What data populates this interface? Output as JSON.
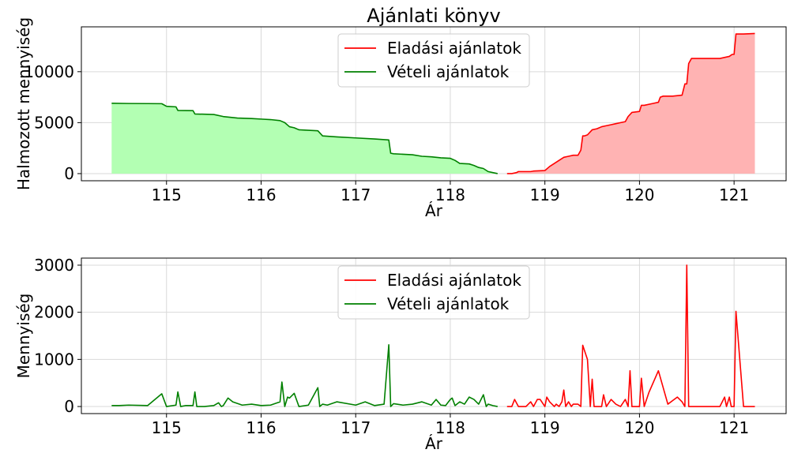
{
  "chart_data": [
    {
      "type": "area",
      "title": "Ajánlati könyv",
      "xlabel": "Ár",
      "ylabel": "Halmozott mennyiség",
      "xlim": [
        114.1,
        121.55
      ],
      "ylim": [
        -700,
        14400
      ],
      "xticks": [
        "115",
        "116",
        "117",
        "118",
        "119",
        "120",
        "121"
      ],
      "yticks": [
        "0",
        "5000",
        "10000"
      ],
      "grid": true,
      "legend": {
        "position": "top-center",
        "entries": [
          {
            "label": "Eladási ajánlatok",
            "color": "#ff0000"
          },
          {
            "label": "Vételi ajánlatok",
            "color": "#008000"
          }
        ]
      },
      "series": [
        {
          "name": "Eladási ajánlatok",
          "color": "#ff0000",
          "fill": "#ffb3b3",
          "x": [
            118.6,
            118.65,
            118.7,
            118.72,
            118.85,
            118.88,
            119.0,
            119.05,
            119.1,
            119.15,
            119.2,
            119.25,
            119.3,
            119.35,
            119.38,
            119.4,
            119.42,
            119.45,
            119.5,
            119.55,
            119.6,
            119.65,
            119.7,
            119.75,
            119.8,
            119.85,
            119.88,
            119.92,
            120.0,
            120.02,
            120.05,
            120.15,
            120.2,
            120.22,
            120.25,
            120.35,
            120.45,
            120.48,
            120.5,
            120.52,
            120.55,
            120.65,
            120.8,
            120.85,
            120.95,
            120.98,
            121.0,
            121.02,
            121.1,
            121.22
          ],
          "y": [
            0,
            0,
            100,
            200,
            200,
            250,
            300,
            700,
            1000,
            1300,
            1600,
            1700,
            1800,
            1800,
            2300,
            3700,
            3700,
            3800,
            4300,
            4400,
            4600,
            4700,
            4800,
            4900,
            5000,
            5100,
            5600,
            6000,
            6100,
            6700,
            6700,
            6900,
            7000,
            7500,
            7600,
            7600,
            7700,
            8800,
            8800,
            10800,
            11300,
            11300,
            11300,
            11300,
            11500,
            11700,
            11700,
            13700,
            13700,
            13750
          ]
        },
        {
          "name": "Vételi ajánlatok",
          "color": "#008000",
          "fill": "#b3ffb3",
          "x": [
            114.42,
            114.6,
            114.8,
            114.95,
            115.0,
            115.1,
            115.12,
            115.28,
            115.3,
            115.5,
            115.6,
            115.65,
            115.7,
            115.75,
            115.9,
            116.0,
            116.1,
            116.2,
            116.25,
            116.3,
            116.35,
            116.4,
            116.6,
            116.65,
            116.8,
            117.0,
            117.2,
            117.35,
            117.37,
            117.4,
            117.5,
            117.6,
            117.7,
            117.8,
            117.85,
            117.9,
            118.0,
            118.05,
            118.1,
            118.2,
            118.25,
            118.3,
            118.35,
            118.4,
            118.45,
            118.5
          ],
          "y": [
            6900,
            6880,
            6870,
            6860,
            6600,
            6550,
            6200,
            6180,
            5850,
            5800,
            5600,
            5550,
            5500,
            5450,
            5400,
            5350,
            5300,
            5200,
            5000,
            4600,
            4500,
            4300,
            4200,
            3700,
            3600,
            3500,
            3400,
            3300,
            2000,
            1950,
            1900,
            1850,
            1700,
            1650,
            1600,
            1550,
            1500,
            1300,
            1000,
            950,
            800,
            600,
            500,
            200,
            100,
            0
          ]
        }
      ]
    },
    {
      "type": "line",
      "title": "",
      "xlabel": "Ár",
      "ylabel": "Mennyiség",
      "xlim": [
        114.1,
        121.55
      ],
      "ylim": [
        -150,
        3150
      ],
      "xticks": [
        "115",
        "116",
        "117",
        "118",
        "119",
        "120",
        "121"
      ],
      "yticks": [
        "0",
        "1000",
        "2000",
        "3000"
      ],
      "grid": true,
      "legend": {
        "position": "top-center",
        "entries": [
          {
            "label": "Eladási ajánlatok",
            "color": "#ff0000"
          },
          {
            "label": "Vételi ajánlatok",
            "color": "#008000"
          }
        ]
      },
      "series": [
        {
          "name": "Eladási ajánlatok",
          "color": "#ff0000",
          "x": [
            118.6,
            118.65,
            118.68,
            118.72,
            118.8,
            118.85,
            118.88,
            118.92,
            118.95,
            119.0,
            119.02,
            119.05,
            119.1,
            119.12,
            119.15,
            119.18,
            119.2,
            119.22,
            119.25,
            119.28,
            119.3,
            119.35,
            119.38,
            119.4,
            119.45,
            119.48,
            119.5,
            119.52,
            119.55,
            119.6,
            119.62,
            119.65,
            119.7,
            119.75,
            119.8,
            119.85,
            119.88,
            119.9,
            119.92,
            119.95,
            120.0,
            120.02,
            120.05,
            120.1,
            120.2,
            120.3,
            120.4,
            120.45,
            120.48,
            120.5,
            120.52,
            120.55,
            120.7,
            120.85,
            120.9,
            120.92,
            120.95,
            120.97,
            121.0,
            121.02,
            121.1,
            121.22
          ],
          "y": [
            0,
            0,
            150,
            0,
            0,
            100,
            0,
            150,
            150,
            0,
            200,
            100,
            0,
            50,
            0,
            100,
            350,
            0,
            100,
            0,
            50,
            50,
            0,
            1300,
            1000,
            0,
            580,
            0,
            0,
            0,
            250,
            0,
            150,
            50,
            0,
            150,
            0,
            760,
            0,
            0,
            0,
            600,
            0,
            300,
            760,
            50,
            200,
            100,
            0,
            3000,
            0,
            0,
            0,
            0,
            200,
            0,
            200,
            0,
            0,
            2020,
            0,
            0
          ]
        },
        {
          "name": "Vételi ajánlatok",
          "color": "#008000",
          "x": [
            114.42,
            114.5,
            114.6,
            114.8,
            114.95,
            115.0,
            115.1,
            115.12,
            115.15,
            115.2,
            115.28,
            115.3,
            115.32,
            115.4,
            115.5,
            115.55,
            115.58,
            115.6,
            115.65,
            115.7,
            115.8,
            115.9,
            116.0,
            116.1,
            116.2,
            116.22,
            116.25,
            116.28,
            116.3,
            116.35,
            116.4,
            116.5,
            116.6,
            116.62,
            116.65,
            116.7,
            116.8,
            117.0,
            117.1,
            117.2,
            117.3,
            117.35,
            117.37,
            117.4,
            117.5,
            117.6,
            117.7,
            117.8,
            117.85,
            117.9,
            117.95,
            118.0,
            118.02,
            118.05,
            118.1,
            118.15,
            118.2,
            118.25,
            118.3,
            118.35,
            118.38,
            118.4,
            118.45,
            118.5
          ],
          "y": [
            20,
            20,
            30,
            20,
            270,
            0,
            30,
            310,
            0,
            20,
            20,
            310,
            0,
            0,
            20,
            80,
            0,
            20,
            180,
            100,
            30,
            50,
            20,
            30,
            100,
            520,
            0,
            200,
            180,
            280,
            0,
            30,
            400,
            0,
            50,
            30,
            100,
            30,
            100,
            20,
            50,
            1310,
            0,
            60,
            30,
            50,
            100,
            30,
            150,
            30,
            20,
            150,
            180,
            20,
            100,
            50,
            200,
            150,
            50,
            250,
            0,
            50,
            20,
            0
          ]
        }
      ]
    }
  ]
}
